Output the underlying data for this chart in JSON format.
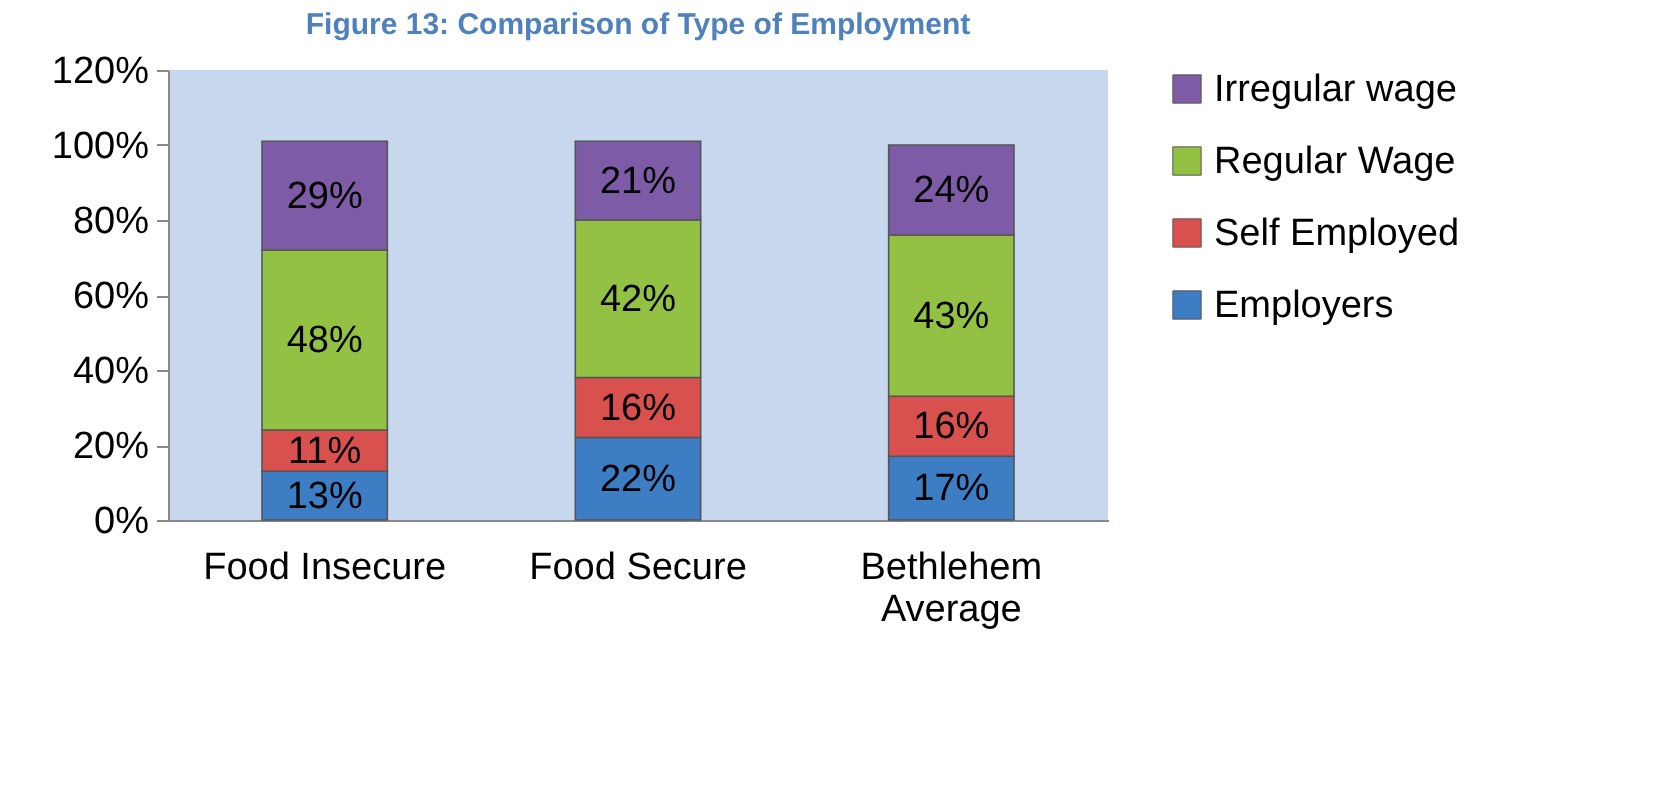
{
  "chart_data": {
    "type": "bar",
    "title": "Figure 13: Comparison of Type of Employment",
    "stacked": true,
    "categories": [
      "Food Insecure",
      "Food Secure",
      "Bethlehem Average"
    ],
    "series": [
      {
        "name": "Employers",
        "color": "#3c7dc4",
        "values": [
          13,
          22,
          17
        ],
        "value_labels": [
          "13%",
          "22%",
          "17%"
        ]
      },
      {
        "name": "Self Employed",
        "color": "#d9514e",
        "values": [
          11,
          16,
          16
        ],
        "value_labels": [
          "11%",
          "16%",
          "16%"
        ]
      },
      {
        "name": "Regular Wage",
        "color": "#93c143",
        "values": [
          48,
          42,
          43
        ],
        "value_labels": [
          "48%",
          "42%",
          "43%"
        ]
      },
      {
        "name": "Irregular wage",
        "color": "#7d5ba6",
        "values": [
          29,
          21,
          24
        ],
        "value_labels": [
          "29%",
          "21%",
          "24%"
        ]
      }
    ],
    "ylim": [
      0,
      120
    ],
    "yticks": [
      {
        "value": 0,
        "label": "0%"
      },
      {
        "value": 20,
        "label": "20%"
      },
      {
        "value": 40,
        "label": "40%"
      },
      {
        "value": 60,
        "label": "60%"
      },
      {
        "value": 80,
        "label": "80%"
      },
      {
        "value": 100,
        "label": "100%"
      },
      {
        "value": 120,
        "label": "120%"
      }
    ],
    "legend": "right"
  }
}
